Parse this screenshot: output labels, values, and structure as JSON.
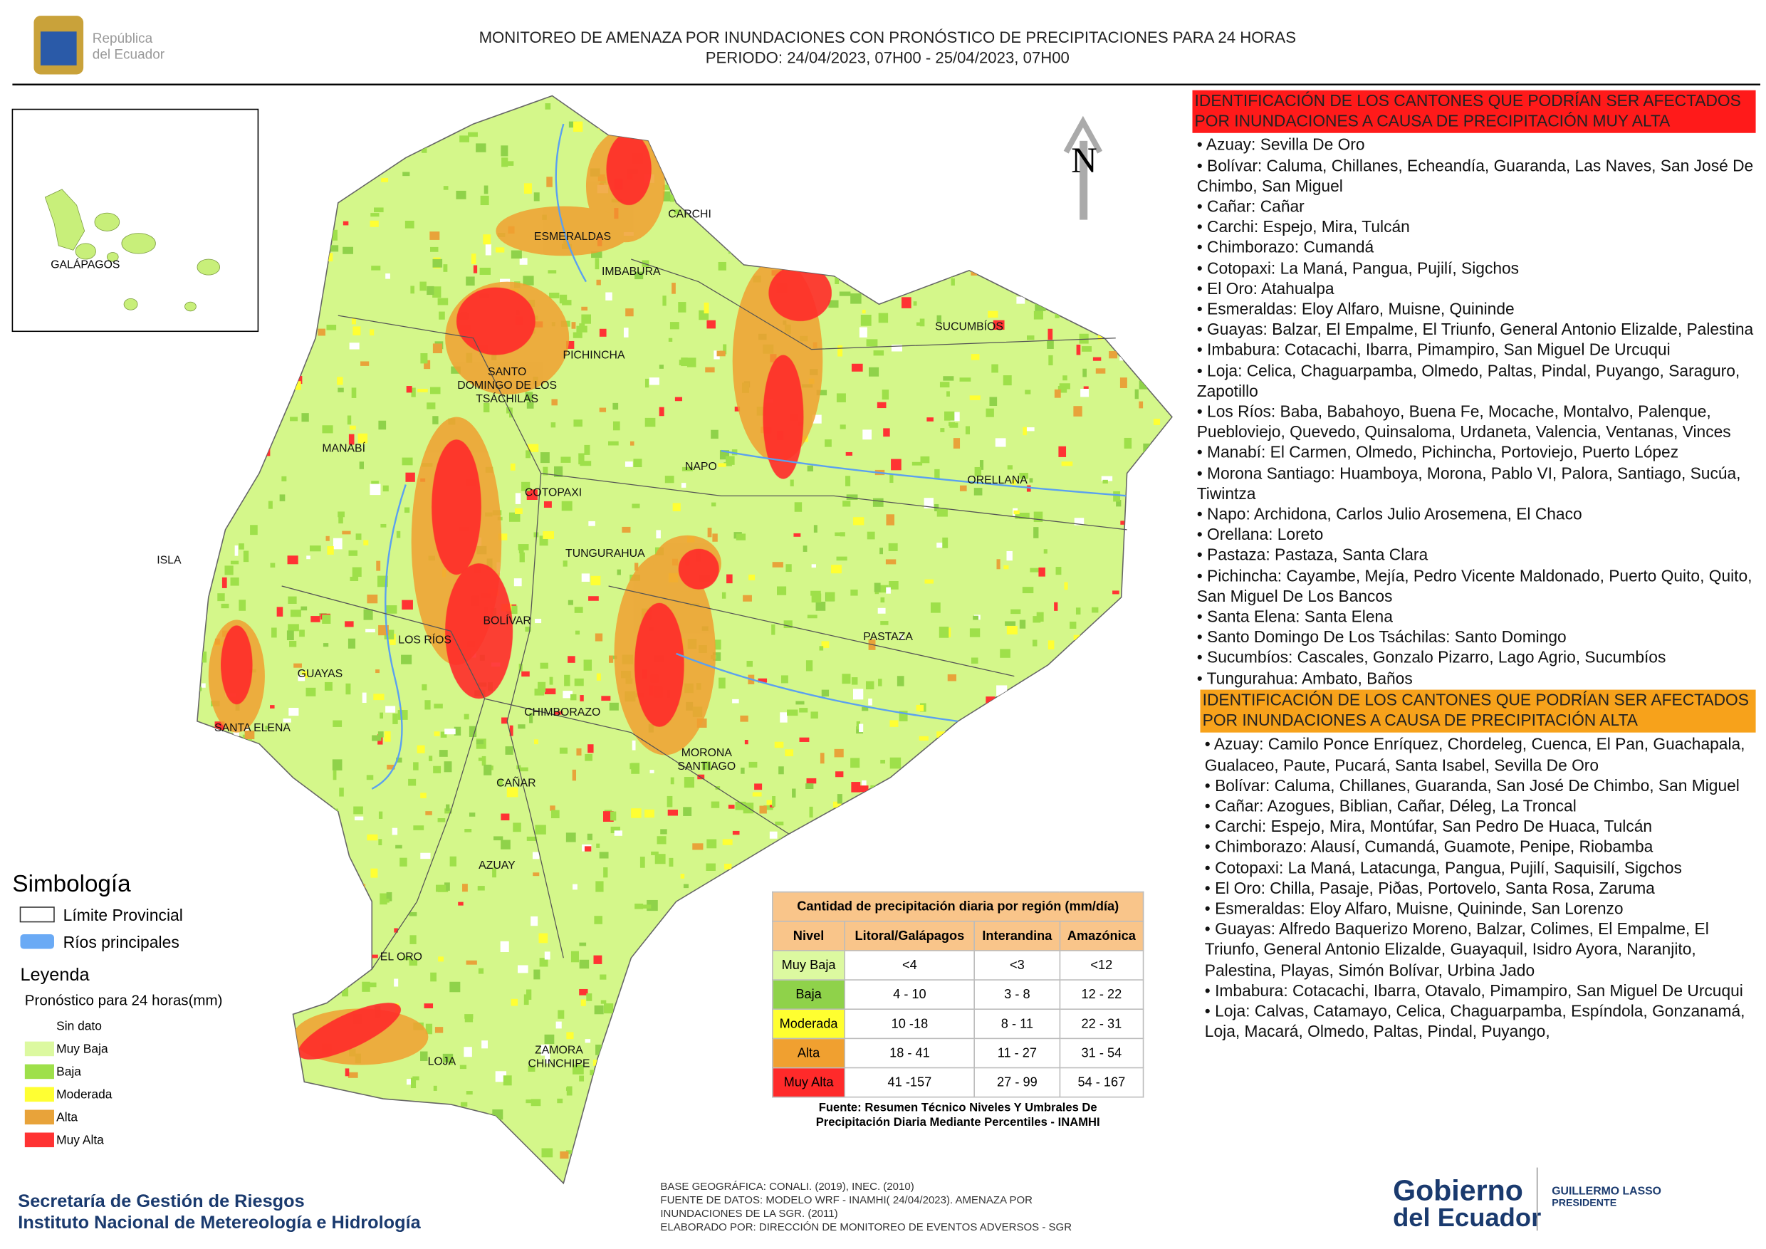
{
  "header": {
    "logo_text": [
      "República",
      "del Ecuador"
    ],
    "title": "MONITOREO DE AMENAZA POR INUNDACIONES  CON PRONÓSTICO DE  PRECIPITACIONES PARA 24 HORAS",
    "period": "PERIODO: 24/04/2023, 07H00 - 25/04/2023, 07H00"
  },
  "map": {
    "north": "N",
    "inset_label": "GALÁPAGOS",
    "labels": [
      [
        "CARCHI"
      ],
      [
        "ESMERALDAS"
      ],
      [
        "IMBABURA"
      ],
      [
        "SUCUMBÍOS"
      ],
      [
        "PICHINCHA"
      ],
      [
        "SANTO",
        "DOMINGO DE LOS",
        "TSÁCHILAS"
      ],
      [
        "MANABÍ"
      ],
      [
        "NAPO"
      ],
      [
        "ORELLANA"
      ],
      [
        "COTOPAXI"
      ],
      [
        "ISLA"
      ],
      [
        "TUNGURAHUA"
      ],
      [
        "BOLÍVAR"
      ],
      [
        "LOS RÍOS"
      ],
      [
        "PASTAZA"
      ],
      [
        "GUAYAS"
      ],
      [
        "CHIMBORAZO"
      ],
      [
        "SANTA ELENA"
      ],
      [
        "MORONA",
        "SANTIAGO"
      ],
      [
        "CAÑAR"
      ],
      [
        "AZUAY"
      ],
      [
        "EL ORO"
      ],
      [
        "ZAMORA",
        "CHINCHIPE"
      ],
      [
        "LOJA"
      ]
    ]
  },
  "symbology": {
    "title": "Simbología",
    "items": [
      "Límite Provincial",
      "Ríos principales"
    ]
  },
  "legend": {
    "title": "Leyenda",
    "subtitle": "Pronóstico para 24 horas(mm)",
    "items": [
      {
        "label": "Sin dato",
        "color": "#ffffff"
      },
      {
        "label": "Muy Baja",
        "color": "#dcf9a0"
      },
      {
        "label": "Baja",
        "color": "#9ee04a"
      },
      {
        "label": "Moderada",
        "color": "#ffff33"
      },
      {
        "label": "Alta",
        "color": "#e8a33a"
      },
      {
        "label": "Muy Alta",
        "color": "#ff3333"
      }
    ]
  },
  "table": {
    "title": "Cantidad de precipitación diaria por región (mm/día)",
    "columns": [
      "Nivel",
      "Litoral/Galápagos",
      "Interandina",
      "Amazónica"
    ],
    "rows": [
      {
        "level": "Muy Baja",
        "color": "#dcf9a0",
        "values": [
          "<4",
          "<3",
          "<12"
        ]
      },
      {
        "level": "Baja",
        "color": "#8fd24a",
        "values": [
          "4 - 10",
          "3 - 8",
          "12 - 22"
        ]
      },
      {
        "level": "Moderada",
        "color": "#ffff30",
        "values": [
          "10 -18",
          "8 - 11",
          "22 - 31"
        ]
      },
      {
        "level": "Alta",
        "color": "#f0a030",
        "values": [
          "18 - 41",
          "11 - 27",
          "31 - 54"
        ]
      },
      {
        "level": "Muy Alta",
        "color": "#ff2a2a",
        "values": [
          "41 -157",
          "27 - 99",
          "54 - 167"
        ]
      }
    ],
    "source": [
      "Fuente: Resumen Técnico Niveles Y Umbrales De",
      "Precipitación Diaria Mediante Percentiles - INAMHI"
    ]
  },
  "panel": {
    "sections": [
      {
        "heading": "IDENTIFICACIÓN DE LOS CANTONES QUE PODRÍAN SER AFECTADOS POR INUNDACIONES  A CAUSA DE PRECIPITACIÓN MUY ALTA",
        "color": "#ff1a1a",
        "items": [
          "• Azuay: Sevilla De Oro",
          "• Bolívar: Caluma, Chillanes, Echeandía, Guaranda, Las Naves, San José De Chimbo, San Miguel",
          "• Cañar: Cañar",
          "• Carchi: Espejo, Mira, Tulcán",
          "• Chimborazo: Cumandá",
          "• Cotopaxi: La Maná, Pangua, Pujilí, Sigchos",
          "• El Oro: Atahualpa",
          "• Esmeraldas: Eloy Alfaro, Muisne, Quininde",
          "• Guayas: Balzar, El Empalme, El Triunfo, General Antonio Elizalde, Palestina",
          "• Imbabura: Cotacachi, Ibarra, Pimampiro, San Miguel De Urcuqui",
          "• Loja: Celica, Chaguarpamba, Olmedo, Paltas, Pindal, Puyango, Saraguro, Zapotillo",
          "• Los Ríos: Baba, Babahoyo, Buena Fe, Mocache, Montalvo, Palenque, Puebloviejo, Quevedo, Quinsaloma, Urdaneta, Valencia, Ventanas, Vinces",
          "• Manabí: El Carmen, Olmedo, Pichincha, Portoviejo, Puerto López",
          "• Morona Santiago: Huamboya, Morona, Pablo VI, Palora, Santiago, Sucúa, Tiwintza",
          "• Napo: Archidona, Carlos Julio Arosemena, El Chaco",
          "• Orellana: Loreto",
          "• Pastaza: Pastaza, Santa Clara",
          "• Pichincha: Cayambe, Mejía, Pedro Vicente Maldonado, Puerto Quito, Quito, San Miguel De Los Bancos",
          "• Santa Elena: Santa Elena",
          "• Santo Domingo De Los Tsáchilas: Santo Domingo",
          "• Sucumbíos: Cascales, Gonzalo Pizarro, Lago Agrio, Sucumbíos",
          "• Tungurahua: Ambato, Baños"
        ]
      },
      {
        "heading": "IDENTIFICACIÓN DE LOS CANTONES QUE  PODRÍAN SER AFECTADOS POR INUNDACIONES  A CAUSA DE PRECIPITACIÓN ALTA",
        "color": "#f7a21b",
        "items": [
          "• Azuay: Camilo Ponce Enríquez, Chordeleg, Cuenca, El Pan, Guachapala, Gualaceo, Paute, Pucará, Santa Isabel, Sevilla De Oro",
          "• Bolívar: Caluma, Chillanes, Guaranda, San José De Chimbo, San Miguel",
          "• Cañar: Azogues, Biblian, Cañar, Déleg, La Troncal",
          "• Carchi: Espejo, Mira, Montúfar, San Pedro De Huaca, Tulcán",
          "• Chimborazo: Alausí, Cumandá, Guamote, Penipe, Riobamba",
          "• Cotopaxi: La Maná, Latacunga, Pangua, Pujilí, Saquisilí, Sigchos",
          "• El Oro: Chilla, Pasaje, Piðas, Portovelo, Santa Rosa, Zaruma",
          "• Esmeraldas: Eloy Alfaro, Muisne, Quininde, San Lorenzo",
          "• Guayas: Alfredo Baquerizo Moreno, Balzar, Colimes, El Empalme, El Triunfo, General Antonio Elizalde, Guayaquil, Isidro Ayora, Naranjito, Palestina, Playas, Simón Bolívar, Urbina Jado",
          "• Imbabura: Cotacachi, Ibarra, Otavalo, Pimampiro, San Miguel De Urcuqui",
          "• Loja: Calvas, Catamayo, Celica, Chaguarpamba, Espíndola, Gonzanamá, Loja, Macará, Olmedo, Paltas, Pindal, Puyango,"
        ]
      }
    ]
  },
  "footer": {
    "agency": [
      "Secretaría de Gestión de Riesgos",
      "Instituto Nacional de Metereología e Hidrología"
    ],
    "notes": [
      "BASE GEOGRÁFICA: CONALI. (2019), INEC. (2010)",
      "FUENTE DE DATOS: MODELO WRF - INAMHI( 24/04/2023).  AMENAZA POR",
      "INUNDACIONES DE LA SGR. (2011)",
      "ELABORADO POR: DIRECCIÓN DE MONITOREO DE EVENTOS ADVERSOS - SGR"
    ],
    "gov": [
      "Gobierno",
      "del Ecuador"
    ],
    "president": [
      "GUILLERMO LASSO",
      "PRESIDENTE"
    ]
  }
}
